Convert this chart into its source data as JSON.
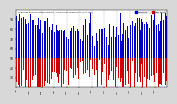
{
  "title": "Milwaukee Weather Outdoor Humidity At Daily High Temperature (Past Year)",
  "background_color": "#d8d8d8",
  "plot_bg_color": "#ffffff",
  "ylim": [
    20,
    100
  ],
  "ytick_values": [
    30,
    40,
    50,
    60,
    70,
    80,
    90
  ],
  "num_bars": 365,
  "legend_blue_label": "Humidity",
  "legend_red_label": "Dew Point",
  "blue_color": "#0000cc",
  "red_color": "#cc0000",
  "grid_color": "#aaaaaa",
  "num_months": 13,
  "baseline": 50,
  "seed": 42,
  "bar_width": 0.6
}
